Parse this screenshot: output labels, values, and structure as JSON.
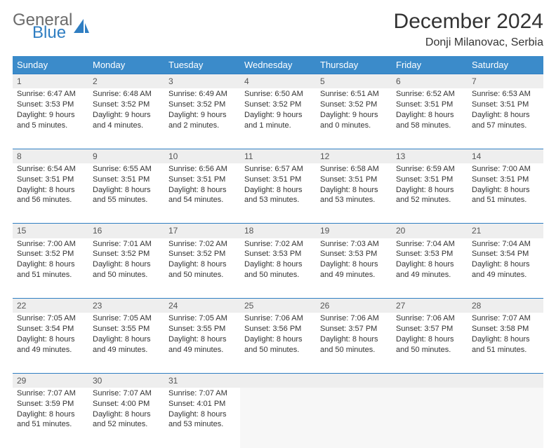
{
  "brand": {
    "line1": "General",
    "line2": "Blue"
  },
  "title": "December 2024",
  "location": "Donji Milanovac, Serbia",
  "colors": {
    "header_bg": "#3b8bca",
    "daynum_bg": "#eeeeee",
    "row_sep": "#2f7ec2",
    "logo_gray": "#6b6b6b",
    "logo_blue": "#2f7ec2"
  },
  "dayHeaders": [
    "Sunday",
    "Monday",
    "Tuesday",
    "Wednesday",
    "Thursday",
    "Friday",
    "Saturday"
  ],
  "weeks": [
    [
      {
        "n": "1",
        "sr": "6:47 AM",
        "ss": "3:53 PM",
        "dl": "9 hours and 5 minutes."
      },
      {
        "n": "2",
        "sr": "6:48 AM",
        "ss": "3:52 PM",
        "dl": "9 hours and 4 minutes."
      },
      {
        "n": "3",
        "sr": "6:49 AM",
        "ss": "3:52 PM",
        "dl": "9 hours and 2 minutes."
      },
      {
        "n": "4",
        "sr": "6:50 AM",
        "ss": "3:52 PM",
        "dl": "9 hours and 1 minute."
      },
      {
        "n": "5",
        "sr": "6:51 AM",
        "ss": "3:52 PM",
        "dl": "9 hours and 0 minutes."
      },
      {
        "n": "6",
        "sr": "6:52 AM",
        "ss": "3:51 PM",
        "dl": "8 hours and 58 minutes."
      },
      {
        "n": "7",
        "sr": "6:53 AM",
        "ss": "3:51 PM",
        "dl": "8 hours and 57 minutes."
      }
    ],
    [
      {
        "n": "8",
        "sr": "6:54 AM",
        "ss": "3:51 PM",
        "dl": "8 hours and 56 minutes."
      },
      {
        "n": "9",
        "sr": "6:55 AM",
        "ss": "3:51 PM",
        "dl": "8 hours and 55 minutes."
      },
      {
        "n": "10",
        "sr": "6:56 AM",
        "ss": "3:51 PM",
        "dl": "8 hours and 54 minutes."
      },
      {
        "n": "11",
        "sr": "6:57 AM",
        "ss": "3:51 PM",
        "dl": "8 hours and 53 minutes."
      },
      {
        "n": "12",
        "sr": "6:58 AM",
        "ss": "3:51 PM",
        "dl": "8 hours and 53 minutes."
      },
      {
        "n": "13",
        "sr": "6:59 AM",
        "ss": "3:51 PM",
        "dl": "8 hours and 52 minutes."
      },
      {
        "n": "14",
        "sr": "7:00 AM",
        "ss": "3:51 PM",
        "dl": "8 hours and 51 minutes."
      }
    ],
    [
      {
        "n": "15",
        "sr": "7:00 AM",
        "ss": "3:52 PM",
        "dl": "8 hours and 51 minutes."
      },
      {
        "n": "16",
        "sr": "7:01 AM",
        "ss": "3:52 PM",
        "dl": "8 hours and 50 minutes."
      },
      {
        "n": "17",
        "sr": "7:02 AM",
        "ss": "3:52 PM",
        "dl": "8 hours and 50 minutes."
      },
      {
        "n": "18",
        "sr": "7:02 AM",
        "ss": "3:53 PM",
        "dl": "8 hours and 50 minutes."
      },
      {
        "n": "19",
        "sr": "7:03 AM",
        "ss": "3:53 PM",
        "dl": "8 hours and 49 minutes."
      },
      {
        "n": "20",
        "sr": "7:04 AM",
        "ss": "3:53 PM",
        "dl": "8 hours and 49 minutes."
      },
      {
        "n": "21",
        "sr": "7:04 AM",
        "ss": "3:54 PM",
        "dl": "8 hours and 49 minutes."
      }
    ],
    [
      {
        "n": "22",
        "sr": "7:05 AM",
        "ss": "3:54 PM",
        "dl": "8 hours and 49 minutes."
      },
      {
        "n": "23",
        "sr": "7:05 AM",
        "ss": "3:55 PM",
        "dl": "8 hours and 49 minutes."
      },
      {
        "n": "24",
        "sr": "7:05 AM",
        "ss": "3:55 PM",
        "dl": "8 hours and 49 minutes."
      },
      {
        "n": "25",
        "sr": "7:06 AM",
        "ss": "3:56 PM",
        "dl": "8 hours and 50 minutes."
      },
      {
        "n": "26",
        "sr": "7:06 AM",
        "ss": "3:57 PM",
        "dl": "8 hours and 50 minutes."
      },
      {
        "n": "27",
        "sr": "7:06 AM",
        "ss": "3:57 PM",
        "dl": "8 hours and 50 minutes."
      },
      {
        "n": "28",
        "sr": "7:07 AM",
        "ss": "3:58 PM",
        "dl": "8 hours and 51 minutes."
      }
    ],
    [
      {
        "n": "29",
        "sr": "7:07 AM",
        "ss": "3:59 PM",
        "dl": "8 hours and 51 minutes."
      },
      {
        "n": "30",
        "sr": "7:07 AM",
        "ss": "4:00 PM",
        "dl": "8 hours and 52 minutes."
      },
      {
        "n": "31",
        "sr": "7:07 AM",
        "ss": "4:01 PM",
        "dl": "8 hours and 53 minutes."
      },
      null,
      null,
      null,
      null
    ]
  ],
  "labels": {
    "sunrise": "Sunrise: ",
    "sunset": "Sunset: ",
    "daylight": "Daylight: "
  }
}
